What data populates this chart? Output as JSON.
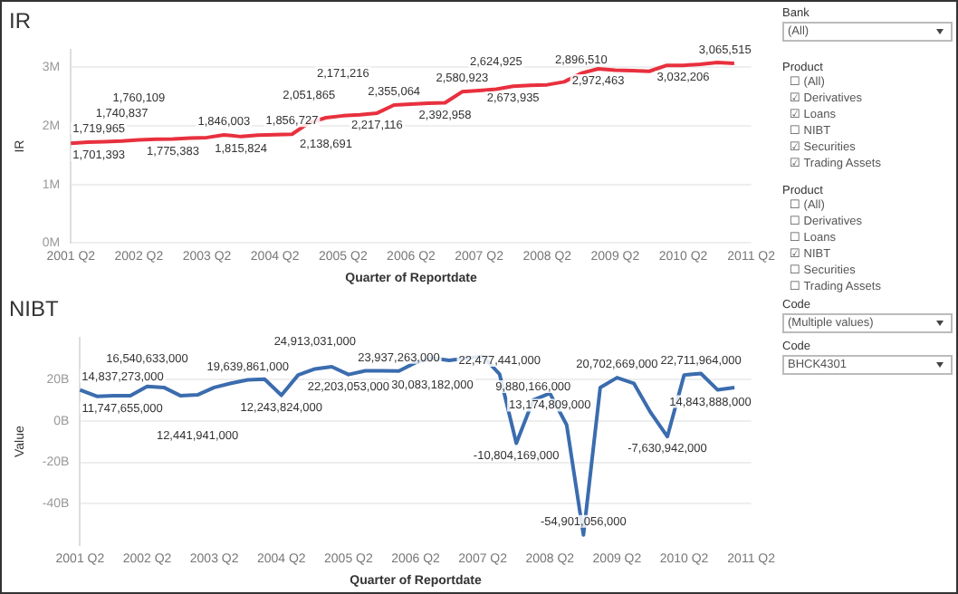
{
  "chart_data": [
    {
      "type": "line",
      "title": "IR",
      "xlabel": "Quarter of Reportdate",
      "ylabel": "IR",
      "categories": [
        "2001 Q2",
        null,
        null,
        null,
        "2002 Q2",
        null,
        null,
        null,
        "2003 Q2",
        null,
        null,
        null,
        "2004 Q2",
        null,
        null,
        null,
        "2005 Q2",
        null,
        null,
        null,
        "2006 Q2",
        null,
        null,
        null,
        "2007 Q2",
        null,
        null,
        null,
        "2008 Q2",
        null,
        null,
        null,
        "2009 Q2",
        null,
        null,
        null,
        "2010 Q2",
        null,
        null,
        null,
        "2011 Q2"
      ],
      "series": [
        {
          "color": "#e8303e",
          "values": [
            1701393,
            1719965,
            1730000,
            1740837,
            1760109,
            1770000,
            1775383,
            1790000,
            1800000,
            1846003,
            1815824,
            1840000,
            1850000,
            1856727,
            2051865,
            2138691,
            2171216,
            2190000,
            2217116,
            2355064,
            2370000,
            2385000,
            2392958,
            2580923,
            2600000,
            2624925,
            2673935,
            2690000,
            2700000,
            2750000,
            2896510,
            2972463,
            2950000,
            2940000,
            2930000,
            3030000,
            3032206,
            3050000,
            3080000,
            3065515,
            null
          ],
          "value_labels": [
            "1,701,393",
            "1,719,965",
            null,
            "1,740,837",
            "1,760,109",
            null,
            "1,775,383",
            null,
            null,
            "1,846,003",
            "1,815,824",
            null,
            null,
            "1,856,727",
            "2,051,865",
            "2,138,691",
            "2,171,216",
            null,
            "2,217,116",
            "2,355,064",
            null,
            null,
            "2,392,958",
            "2,580,923",
            null,
            "2,624,925",
            "2,673,935",
            null,
            null,
            null,
            "2,896,510",
            "2,972,463",
            null,
            null,
            null,
            null,
            "3,032,206",
            null,
            null,
            "3,065,515",
            null
          ]
        }
      ],
      "ylim": [
        0,
        3300000
      ],
      "yticks": [
        {
          "value": 0,
          "label": "0M"
        },
        {
          "value": 1000000,
          "label": "1M"
        },
        {
          "value": 2000000,
          "label": "2M"
        },
        {
          "value": 3000000,
          "label": "3M"
        }
      ],
      "grid": "y",
      "legend": false,
      "marker": "none",
      "line_style": "solid"
    },
    {
      "type": "line",
      "title": "NIBT",
      "xlabel": "Quarter of Reportdate",
      "ylabel": "Value",
      "categories": [
        "2001 Q2",
        null,
        null,
        null,
        "2002 Q2",
        null,
        null,
        null,
        "2003 Q2",
        null,
        null,
        null,
        "2004 Q2",
        null,
        null,
        null,
        "2005 Q2",
        null,
        null,
        null,
        "2006 Q2",
        null,
        null,
        null,
        "2007 Q2",
        null,
        null,
        null,
        "2008 Q2",
        null,
        null,
        null,
        "2009 Q2",
        null,
        null,
        null,
        "2010 Q2",
        null,
        null,
        null,
        "2011 Q2"
      ],
      "series": [
        {
          "color": "#3b6cae",
          "values": [
            14837273000,
            11747655000,
            12000000000,
            12000000000,
            16540633000,
            16000000000,
            12000000000,
            12441941000,
            16000000000,
            18000000000,
            19639861000,
            20000000000,
            12243824000,
            22000000000,
            24913031000,
            26000000000,
            22203053000,
            24000000000,
            24000000000,
            23937263000,
            28000000000,
            30083182000,
            29000000000,
            30000000000,
            31000000000,
            22477441000,
            -10804169000,
            9880166000,
            13174809000,
            -2000000000,
            -54901056000,
            16000000000,
            20702669000,
            18000000000,
            4000000000,
            -7630942000,
            22000000000,
            22711964000,
            14843888000,
            16000000000,
            null
          ],
          "value_labels": [
            "14,837,273,000",
            "11,747,655,000",
            null,
            null,
            "16,540,633,000",
            null,
            null,
            "12,441,941,000",
            null,
            null,
            "19,639,861,000",
            null,
            "12,243,824,000",
            null,
            "24,913,031,000",
            null,
            "22,203,053,000",
            null,
            null,
            "23,937,263,000",
            null,
            "30,083,182,000",
            null,
            null,
            null,
            "22,477,441,000",
            "-10,804,169,000",
            "9,880,166,000",
            "13,174,809,000",
            null,
            "-54,901,056,000",
            null,
            "20,702,669,000",
            null,
            null,
            "-7,630,942,000",
            null,
            "22,711,964,000",
            "14,843,888,000",
            null,
            null
          ]
        }
      ],
      "ylim": [
        -60000000000,
        40000000000
      ],
      "yticks": [
        {
          "value": -40000000000,
          "label": "-40B"
        },
        {
          "value": -20000000000,
          "label": "-20B"
        },
        {
          "value": 0,
          "label": "0B"
        },
        {
          "value": 20000000000,
          "label": "20B"
        }
      ],
      "grid": "y",
      "legend": false,
      "marker": "none",
      "line_style": "solid"
    },
    {
      "type": "other",
      "annotations": [
        "Bank",
        "(All)",
        "Product",
        "☐ (All)",
        "☑ Derivatives",
        "☑ Loans",
        "☐ NIBT",
        "☑ Securities",
        "☑ Trading Assets",
        "Product",
        "☐ (All)",
        "☐ Derivatives",
        "☐ Loans",
        "☑ NIBT",
        "☐ Securities",
        "☐ Trading Assets",
        "Code",
        "(Multiple values)",
        "Code",
        "BHCK4301"
      ]
    }
  ]
}
